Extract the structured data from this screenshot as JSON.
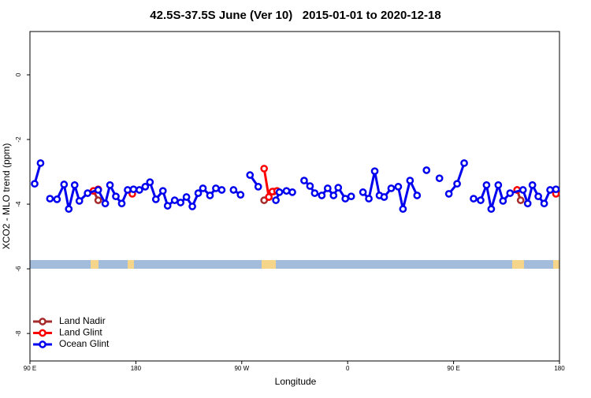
{
  "chart_data": {
    "type": "line",
    "title": "42.5S-37.5S June (Ver 10)   2015-01-01 to 2020-12-18",
    "x_label": "Longitude",
    "y_label": "XCO2 - MLO trend (ppm)",
    "xlim": [
      90,
      540
    ],
    "ylim": [
      -8.85,
      1.34
    ],
    "xticks": [
      {
        "value": 90,
        "label": "90 E"
      },
      {
        "value": 180,
        "label": "180"
      },
      {
        "value": 270,
        "label": "90 W"
      },
      {
        "value": 360,
        "label": "0"
      },
      {
        "value": 450,
        "label": "90 E"
      },
      {
        "value": 540,
        "label": "180"
      }
    ],
    "yticks": [
      0,
      -2,
      -4,
      -6,
      -8
    ],
    "legend": "bottom-left",
    "series": [
      {
        "name": "Land Nadir",
        "color": "#a52a2a",
        "x": [
          144,
          148,
          null,
          289,
          293,
          297,
          null,
          504,
          507
        ],
        "values": [
          -3.59,
          -3.88,
          null,
          -3.88,
          -3.78,
          -3.61,
          null,
          -3.56,
          -3.88
        ]
      },
      {
        "name": "Land Glint",
        "color": "#ff0000",
        "x": [
          144,
          148,
          null,
          177,
          null,
          289,
          293,
          296,
          300,
          null,
          504,
          null,
          537
        ],
        "values": [
          -3.59,
          -3.54,
          null,
          -3.68,
          null,
          -2.9,
          -3.78,
          -3.61,
          -3.59,
          null,
          -3.56,
          null,
          -3.68
        ]
      },
      {
        "name": "Ocean Glint",
        "color": "#0000ee",
        "x": [
          94,
          99,
          null,
          107,
          113,
          119,
          123,
          128,
          132,
          139,
          148,
          154,
          158,
          163,
          168,
          173,
          178,
          183,
          188,
          192,
          197,
          203,
          207,
          213,
          218,
          223,
          228,
          233,
          237,
          243,
          248,
          253,
          null,
          263,
          269,
          null,
          277,
          284,
          null,
          299,
          302,
          308,
          313,
          null,
          323,
          328,
          332,
          338,
          343,
          348,
          352,
          358,
          363,
          null,
          373,
          378,
          383,
          387,
          391,
          397,
          403,
          407,
          413,
          419,
          null,
          427,
          null,
          438,
          null,
          446,
          453,
          459,
          null,
          467,
          473,
          478,
          482,
          488,
          492,
          498,
          509,
          513,
          517,
          522,
          527,
          532,
          537
        ],
        "values": [
          -3.37,
          -2.73,
          null,
          -3.83,
          -3.85,
          -3.39,
          -4.15,
          -3.41,
          -3.9,
          -3.66,
          -3.56,
          -3.98,
          -3.41,
          -3.76,
          -3.98,
          -3.56,
          -3.54,
          -3.56,
          -3.46,
          -3.32,
          -3.85,
          -3.59,
          -4.05,
          -3.88,
          -3.95,
          -3.78,
          -4.07,
          -3.66,
          -3.51,
          -3.73,
          -3.51,
          -3.56,
          null,
          -3.56,
          -3.71,
          null,
          -3.1,
          -3.46,
          null,
          -3.88,
          -3.63,
          -3.59,
          -3.63,
          null,
          -3.27,
          -3.44,
          -3.66,
          -3.73,
          -3.51,
          -3.73,
          -3.49,
          -3.83,
          -3.76,
          null,
          -3.63,
          -3.83,
          -2.98,
          -3.73,
          -3.78,
          -3.51,
          -3.46,
          -4.15,
          -3.27,
          -3.73,
          null,
          -2.95,
          null,
          -3.2,
          null,
          -3.68,
          -3.37,
          -2.73,
          null,
          -3.83,
          -3.88,
          -3.41,
          -4.15,
          -3.41,
          -3.9,
          -3.66,
          -3.56,
          -3.98,
          -3.41,
          -3.76,
          -3.98,
          -3.56,
          -3.54
        ]
      }
    ]
  }
}
